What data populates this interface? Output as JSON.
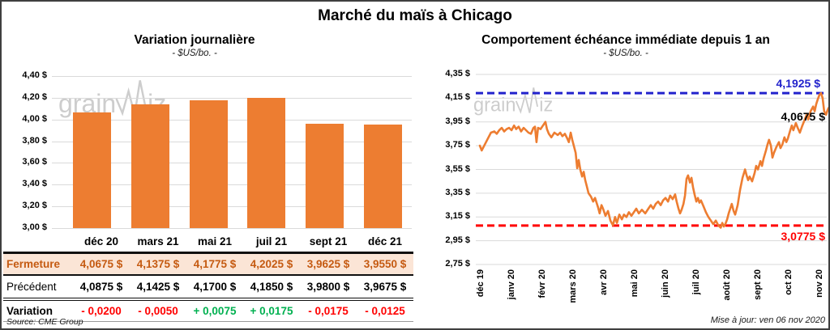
{
  "app": {
    "title": "Marché du maïs à Chicago",
    "source": "Source: CME Group",
    "updated": "Mise à jour: ven 06 nov 2020",
    "watermark": {
      "part1": "grain",
      "part2": "iz"
    }
  },
  "colors": {
    "orange": "#ED7D31",
    "grid": "#DADADA",
    "fermeture_bg": "#FBE5D6",
    "fermeture_text": "#C55A11",
    "negative": "#FF0000",
    "positive": "#00B050",
    "resistance_blue": "#2222CC",
    "support_red": "#FF0000",
    "watermark_gray": "#C5C5C5"
  },
  "chart_data": [
    {
      "type": "bar",
      "title": "Variation  journalière",
      "subtitle": "- $US/bo. -",
      "categories": [
        "déc 20",
        "mars 21",
        "mai 21",
        "juil 21",
        "sept 21",
        "déc 21"
      ],
      "values": [
        4.0675,
        4.1375,
        4.1775,
        4.2025,
        3.9625,
        3.955
      ],
      "ylim": [
        3.0,
        4.4
      ],
      "ytick_step": 0.2,
      "ytick_labels": [
        "4,40 $",
        "4,20 $",
        "4,00 $",
        "3,80 $",
        "3,60 $",
        "3,40 $",
        "3,20 $",
        "3,00 $"
      ],
      "bar_color": "#ED7D31",
      "grid": true,
      "legend": "none"
    },
    {
      "type": "line",
      "title": "Comportement  échéance immédiate  depuis 1 an",
      "subtitle": "- $US/bo. -",
      "xlabel": "",
      "ylabel": "",
      "x_ticks": [
        "déc 19",
        "janv 20",
        "févr 20",
        "mars 20",
        "avr 20",
        "mai 20",
        "juin 20",
        "juil 20",
        "août 20",
        "sept 20",
        "oct 20",
        "nov 20"
      ],
      "ylim": [
        2.75,
        4.35
      ],
      "ytick_step": 0.2,
      "ytick_labels": [
        "4,35 $",
        "4,15 $",
        "3,95 $",
        "3,75 $",
        "3,55 $",
        "3,35 $",
        "3,15 $",
        "2,95 $",
        "2,75 $"
      ],
      "grid": true,
      "legend": "none",
      "series": [
        {
          "name": "échéance immédiate",
          "color": "#ED7D31",
          "points": [
            [
              0,
              3.75
            ],
            [
              0.06,
              3.71
            ],
            [
              0.16,
              3.76
            ],
            [
              0.26,
              3.81
            ],
            [
              0.36,
              3.86
            ],
            [
              0.47,
              3.87
            ],
            [
              0.55,
              3.85
            ],
            [
              0.63,
              3.88
            ],
            [
              0.71,
              3.9
            ],
            [
              0.79,
              3.87
            ],
            [
              0.87,
              3.89
            ],
            [
              0.95,
              3.9
            ],
            [
              1.03,
              3.88
            ],
            [
              1.11,
              3.92
            ],
            [
              1.18,
              3.89
            ],
            [
              1.26,
              3.91
            ],
            [
              1.34,
              3.87
            ],
            [
              1.42,
              3.9
            ],
            [
              1.5,
              3.88
            ],
            [
              1.58,
              3.86
            ],
            [
              1.66,
              3.85
            ],
            [
              1.74,
              3.9
            ],
            [
              1.79,
              3.91
            ],
            [
              1.84,
              3.78
            ],
            [
              1.89,
              3.9
            ],
            [
              1.97,
              3.89
            ],
            [
              2.05,
              3.92
            ],
            [
              2.13,
              3.95
            ],
            [
              2.18,
              3.89
            ],
            [
              2.24,
              3.85
            ],
            [
              2.32,
              3.82
            ],
            [
              2.42,
              3.86
            ],
            [
              2.53,
              3.84
            ],
            [
              2.61,
              3.86
            ],
            [
              2.68,
              3.83
            ],
            [
              2.76,
              3.85
            ],
            [
              2.84,
              3.81
            ],
            [
              2.89,
              3.78
            ],
            [
              2.95,
              3.86
            ],
            [
              3,
              3.8
            ],
            [
              3.05,
              3.75
            ],
            [
              3.11,
              3.69
            ],
            [
              3.16,
              3.56
            ],
            [
              3.21,
              3.63
            ],
            [
              3.26,
              3.55
            ],
            [
              3.32,
              3.49
            ],
            [
              3.37,
              3.53
            ],
            [
              3.42,
              3.46
            ],
            [
              3.47,
              3.41
            ],
            [
              3.53,
              3.35
            ],
            [
              3.61,
              3.32
            ],
            [
              3.68,
              3.28
            ],
            [
              3.74,
              3.31
            ],
            [
              3.79,
              3.27
            ],
            [
              3.84,
              3.23
            ],
            [
              3.89,
              3.18
            ],
            [
              3.95,
              3.25
            ],
            [
              4,
              3.22
            ],
            [
              4.08,
              3.16
            ],
            [
              4.16,
              3.2
            ],
            [
              4.24,
              3.12
            ],
            [
              4.32,
              3.08
            ],
            [
              4.39,
              3.15
            ],
            [
              4.45,
              3.1
            ],
            [
              4.53,
              3.17
            ],
            [
              4.61,
              3.13
            ],
            [
              4.68,
              3.17
            ],
            [
              4.76,
              3.15
            ],
            [
              4.84,
              3.19
            ],
            [
              4.92,
              3.16
            ],
            [
              5,
              3.19
            ],
            [
              5.08,
              3.22
            ],
            [
              5.16,
              3.18
            ],
            [
              5.26,
              3.21
            ],
            [
              5.37,
              3.18
            ],
            [
              5.47,
              3.22
            ],
            [
              5.55,
              3.25
            ],
            [
              5.63,
              3.22
            ],
            [
              5.71,
              3.26
            ],
            [
              5.79,
              3.28
            ],
            [
              5.87,
              3.25
            ],
            [
              5.95,
              3.29
            ],
            [
              6.03,
              3.31
            ],
            [
              6.11,
              3.28
            ],
            [
              6.18,
              3.33
            ],
            [
              6.26,
              3.3
            ],
            [
              6.34,
              3.34
            ],
            [
              6.39,
              3.28
            ],
            [
              6.45,
              3.22
            ],
            [
              6.5,
              3.18
            ],
            [
              6.55,
              3.21
            ],
            [
              6.61,
              3.26
            ],
            [
              6.66,
              3.33
            ],
            [
              6.71,
              3.47
            ],
            [
              6.76,
              3.5
            ],
            [
              6.82,
              3.44
            ],
            [
              6.87,
              3.48
            ],
            [
              6.92,
              3.4
            ],
            [
              6.97,
              3.34
            ],
            [
              7.03,
              3.28
            ],
            [
              7.08,
              3.31
            ],
            [
              7.13,
              3.27
            ],
            [
              7.18,
              3.29
            ],
            [
              7.26,
              3.24
            ],
            [
              7.34,
              3.19
            ],
            [
              7.42,
              3.15
            ],
            [
              7.5,
              3.12
            ],
            [
              7.58,
              3.09
            ],
            [
              7.66,
              3.12
            ],
            [
              7.74,
              3.08
            ],
            [
              7.82,
              3.06
            ],
            [
              7.87,
              3.1
            ],
            [
              7.92,
              3.07
            ],
            [
              7.97,
              3.09
            ],
            [
              8.03,
              3.13
            ],
            [
              8.08,
              3.18
            ],
            [
              8.13,
              3.22
            ],
            [
              8.18,
              3.26
            ],
            [
              8.24,
              3.2
            ],
            [
              8.29,
              3.17
            ],
            [
              8.37,
              3.25
            ],
            [
              8.45,
              3.38
            ],
            [
              8.53,
              3.48
            ],
            [
              8.61,
              3.55
            ],
            [
              8.66,
              3.5
            ],
            [
              8.71,
              3.46
            ],
            [
              8.76,
              3.49
            ],
            [
              8.84,
              3.45
            ],
            [
              8.92,
              3.52
            ],
            [
              8.97,
              3.58
            ],
            [
              9.03,
              3.55
            ],
            [
              9.11,
              3.62
            ],
            [
              9.16,
              3.58
            ],
            [
              9.21,
              3.64
            ],
            [
              9.29,
              3.71
            ],
            [
              9.34,
              3.76
            ],
            [
              9.39,
              3.8
            ],
            [
              9.45,
              3.75
            ],
            [
              9.5,
              3.65
            ],
            [
              9.55,
              3.69
            ],
            [
              9.63,
              3.74
            ],
            [
              9.71,
              3.78
            ],
            [
              9.76,
              3.73
            ],
            [
              9.82,
              3.76
            ],
            [
              9.89,
              3.82
            ],
            [
              9.95,
              3.78
            ],
            [
              10,
              3.81
            ],
            [
              10.08,
              3.88
            ],
            [
              10.13,
              3.92
            ],
            [
              10.18,
              3.88
            ],
            [
              10.26,
              3.94
            ],
            [
              10.32,
              3.9
            ],
            [
              10.39,
              3.86
            ],
            [
              10.47,
              3.92
            ],
            [
              10.55,
              3.97
            ],
            [
              10.61,
              4.01
            ],
            [
              10.66,
              3.97
            ],
            [
              10.74,
              4.04
            ],
            [
              10.82,
              4.08
            ],
            [
              10.87,
              4.04
            ],
            [
              10.92,
              4.1
            ],
            [
              10.97,
              4.14
            ],
            [
              11.03,
              4.18
            ],
            [
              11.08,
              4.1925
            ],
            [
              11.13,
              4.15
            ],
            [
              11.18,
              4.04
            ],
            [
              11.24,
              4.01
            ],
            [
              11.29,
              4.05
            ],
            [
              11.32,
              4.0675
            ]
          ]
        }
      ],
      "annotations": [
        {
          "name": "resistance",
          "label": "4,1925 $",
          "value": 4.1925,
          "style": "dashed",
          "color": "#2222CC"
        },
        {
          "name": "support",
          "label": "3,0775 $",
          "value": 3.0775,
          "style": "dashed",
          "color": "#FF0000"
        },
        {
          "name": "last-value",
          "label": "4,0675 $",
          "value": 4.0675,
          "style": "text-only",
          "color": "#000000"
        }
      ]
    }
  ],
  "table": {
    "rows": [
      {
        "key": "fermeture",
        "label": "Fermeture",
        "values": [
          "4,0675  $",
          "4,1375  $",
          "4,1775  $",
          "4,2025  $",
          "3,9625  $",
          "3,9550  $"
        ]
      },
      {
        "key": "precedent",
        "label": "Précédent",
        "values": [
          "4,0875  $",
          "4,1425  $",
          "4,1700  $",
          "4,1850  $",
          "3,9800  $",
          "3,9675  $"
        ]
      },
      {
        "key": "variation",
        "label": "Variation",
        "values": [
          "- 0,0200",
          "- 0,0050",
          "+ 0,0075",
          "+ 0,0175",
          "- 0,0175",
          "- 0,0125"
        ]
      }
    ]
  }
}
